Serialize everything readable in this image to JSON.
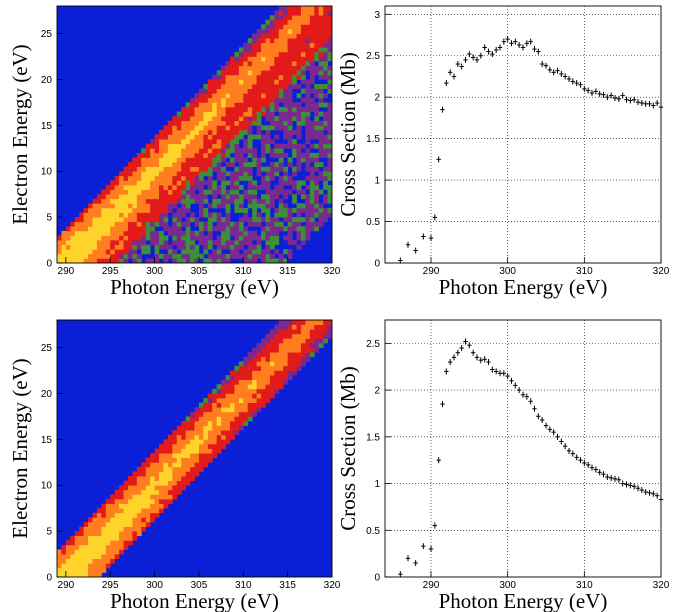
{
  "figure": {
    "panels": [
      "heatmap-top",
      "scatter-top",
      "heatmap-bottom",
      "scatter-bottom"
    ]
  },
  "colors": {
    "background_low": "#0a1fd6",
    "purple": "#7a2a8e",
    "green": "#3f8e3a",
    "red": "#e21a1a",
    "orange": "#ff7e1f",
    "yellow": "#ffd42a",
    "marker": "#000000",
    "grid": "#000000"
  },
  "chart_data": [
    {
      "id": "heatmap-top",
      "type": "heatmap",
      "xlabel": "Photon Energy (eV)",
      "ylabel": "Electron Energy (eV)",
      "xlim": [
        289,
        320
      ],
      "ylim": [
        0,
        28
      ],
      "xticks": [
        290,
        295,
        300,
        305,
        310,
        315,
        320
      ],
      "yticks": [
        0,
        5,
        10,
        15,
        20,
        25
      ],
      "grid": false,
      "ridges": [
        {
          "offset": 290,
          "peak_level": "yellow",
          "fade_to": "red",
          "description_band": "primary"
        },
        {
          "offset": 294,
          "peak_level": "red",
          "fade_to": "purple",
          "description_band": "secondary"
        }
      ],
      "background_speckle": "green-purple"
    },
    {
      "id": "scatter-top",
      "type": "scatter",
      "xlabel": "Photon Energy (eV)",
      "ylabel": "Cross Section (Mb)",
      "xlim": [
        284,
        320
      ],
      "ylim": [
        0,
        3.1
      ],
      "xticks": [
        290,
        300,
        310,
        320
      ],
      "yticks": [
        0,
        0.5,
        1,
        1.5,
        2,
        2.5,
        3
      ],
      "grid": true,
      "x": [
        286,
        287,
        288,
        289,
        290,
        290.5,
        291,
        291.5,
        292,
        292.5,
        293,
        293.5,
        294,
        294.5,
        295,
        295.5,
        296,
        296.5,
        297,
        297.5,
        298,
        298.5,
        299,
        299.5,
        300,
        300.5,
        301,
        301.5,
        302,
        302.5,
        303,
        303.5,
        304,
        304.5,
        305,
        305.5,
        306,
        306.5,
        307,
        307.5,
        308,
        308.5,
        309,
        309.5,
        310,
        310.5,
        311,
        311.5,
        312,
        312.5,
        313,
        313.5,
        314,
        314.5,
        315,
        315.5,
        316,
        316.5,
        317,
        317.5,
        318,
        318.5,
        319,
        319.5,
        320
      ],
      "y": [
        0.03,
        0.22,
        0.15,
        0.32,
        0.3,
        0.55,
        1.25,
        1.85,
        2.17,
        2.3,
        2.25,
        2.4,
        2.37,
        2.45,
        2.52,
        2.48,
        2.45,
        2.5,
        2.6,
        2.55,
        2.52,
        2.57,
        2.6,
        2.67,
        2.7,
        2.65,
        2.67,
        2.63,
        2.6,
        2.65,
        2.67,
        2.58,
        2.55,
        2.4,
        2.38,
        2.33,
        2.3,
        2.32,
        2.28,
        2.25,
        2.22,
        2.19,
        2.17,
        2.15,
        2.1,
        2.08,
        2.05,
        2.07,
        2.04,
        2.03,
        2.0,
        2.02,
        1.99,
        1.98,
        2.02,
        1.97,
        1.96,
        1.97,
        1.94,
        1.93,
        1.92,
        1.92,
        1.9,
        1.93,
        1.88
      ]
    },
    {
      "id": "heatmap-bottom",
      "type": "heatmap",
      "xlabel": "Photon Energy (eV)",
      "ylabel": "Electron Energy (eV)",
      "xlim": [
        289,
        320
      ],
      "ylim": [
        0,
        28
      ],
      "xticks": [
        290,
        295,
        300,
        305,
        310,
        315,
        320
      ],
      "yticks": [
        0,
        5,
        10,
        15,
        20,
        25
      ],
      "grid": false,
      "ridges": [
        {
          "offset": 290,
          "peak_level": "yellow",
          "fade_to": "red",
          "description_band": "primary"
        }
      ],
      "background_speckle": "none"
    },
    {
      "id": "scatter-bottom",
      "type": "scatter",
      "xlabel": "Photon Energy (eV)",
      "ylabel": "Cross Section (Mb)",
      "xlim": [
        284,
        320
      ],
      "ylim": [
        0,
        2.75
      ],
      "xticks": [
        290,
        300,
        310,
        320
      ],
      "yticks": [
        0,
        0.5,
        1,
        1.5,
        2,
        2.5
      ],
      "grid": true,
      "x": [
        286,
        287,
        288,
        289,
        290,
        290.5,
        291,
        291.5,
        292,
        292.5,
        293,
        293.5,
        294,
        294.5,
        295,
        295.5,
        296,
        296.5,
        297,
        297.5,
        298,
        298.5,
        299,
        299.5,
        300,
        300.5,
        301,
        301.5,
        302,
        302.5,
        303,
        303.5,
        304,
        304.5,
        305,
        305.5,
        306,
        306.5,
        307,
        307.5,
        308,
        308.5,
        309,
        309.5,
        310,
        310.5,
        311,
        311.5,
        312,
        312.5,
        313,
        313.5,
        314,
        314.5,
        315,
        315.5,
        316,
        316.5,
        317,
        317.5,
        318,
        318.5,
        319,
        319.5,
        320
      ],
      "y": [
        0.03,
        0.2,
        0.15,
        0.33,
        0.3,
        0.55,
        1.25,
        1.85,
        2.2,
        2.3,
        2.35,
        2.4,
        2.45,
        2.52,
        2.48,
        2.4,
        2.35,
        2.32,
        2.33,
        2.3,
        2.22,
        2.2,
        2.18,
        2.18,
        2.15,
        2.1,
        2.05,
        2.0,
        1.95,
        1.93,
        1.88,
        1.8,
        1.72,
        1.68,
        1.62,
        1.58,
        1.55,
        1.5,
        1.45,
        1.4,
        1.35,
        1.32,
        1.28,
        1.25,
        1.22,
        1.2,
        1.17,
        1.15,
        1.12,
        1.1,
        1.07,
        1.06,
        1.05,
        1.04,
        1.0,
        0.99,
        0.98,
        0.97,
        0.95,
        0.93,
        0.91,
        0.9,
        0.89,
        0.87,
        0.83
      ]
    }
  ]
}
